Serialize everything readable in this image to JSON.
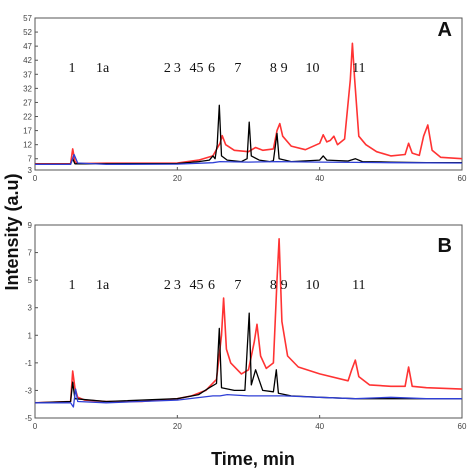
{
  "chart_data": [
    {
      "type": "line",
      "panel_label": "A",
      "xlim": [
        0,
        60
      ],
      "ylim": [
        3,
        57
      ],
      "x_ticks": [
        0,
        20,
        40,
        60
      ],
      "y_ticks": [
        3,
        7,
        12,
        17,
        22,
        27,
        32,
        37,
        42,
        47,
        52,
        57
      ],
      "peak_labels": [
        "1",
        "1a",
        "2",
        "3",
        "45",
        "6",
        "7",
        "8",
        "9",
        "10",
        "11"
      ],
      "series": [
        {
          "color": "#ff3333",
          "points": [
            [
              0,
              5.2
            ],
            [
              5,
              5.2
            ],
            [
              5.3,
              10.5
            ],
            [
              5.6,
              6
            ],
            [
              6,
              5.3
            ],
            [
              10,
              5.4
            ],
            [
              20,
              5.5
            ],
            [
              23,
              6.5
            ],
            [
              25,
              8
            ],
            [
              26,
              12.5
            ],
            [
              26.3,
              15.2
            ],
            [
              26.8,
              12
            ],
            [
              28,
              10
            ],
            [
              30,
              9.5
            ],
            [
              31,
              11
            ],
            [
              32,
              10
            ],
            [
              33.5,
              10.5
            ],
            [
              34,
              17
            ],
            [
              34.4,
              19.5
            ],
            [
              34.8,
              15
            ],
            [
              36,
              11.5
            ],
            [
              38,
              10.2
            ],
            [
              40,
              12.5
            ],
            [
              40.5,
              15.5
            ],
            [
              41,
              13
            ],
            [
              41.5,
              13.5
            ],
            [
              42,
              15
            ],
            [
              42.5,
              12
            ],
            [
              43.5,
              14
            ],
            [
              44.3,
              35
            ],
            [
              44.6,
              48
            ],
            [
              44.9,
              36
            ],
            [
              45.5,
              15
            ],
            [
              46.5,
              12
            ],
            [
              48,
              9.5
            ],
            [
              50,
              8
            ],
            [
              52,
              8.5
            ],
            [
              52.5,
              12.5
            ],
            [
              53,
              9
            ],
            [
              54,
              8.2
            ],
            [
              54.6,
              15
            ],
            [
              55.2,
              19
            ],
            [
              55.8,
              10
            ],
            [
              57,
              7.5
            ],
            [
              60,
              7
            ]
          ]
        },
        {
          "color": "#000000",
          "points": [
            [
              0,
              5.1
            ],
            [
              5,
              5.1
            ],
            [
              5.3,
              7
            ],
            [
              5.6,
              5.2
            ],
            [
              10,
              5.2
            ],
            [
              20,
              5.3
            ],
            [
              23,
              6
            ],
            [
              24.5,
              6.5
            ],
            [
              25,
              8
            ],
            [
              25.3,
              7
            ],
            [
              25.6,
              12
            ],
            [
              25.9,
              26
            ],
            [
              26.2,
              8
            ],
            [
              27,
              6.5
            ],
            [
              29,
              6
            ],
            [
              29.8,
              7
            ],
            [
              30.1,
              20
            ],
            [
              30.4,
              8
            ],
            [
              31.5,
              6.5
            ],
            [
              33,
              6
            ],
            [
              33.5,
              6.3
            ],
            [
              34,
              16
            ],
            [
              34.3,
              7
            ],
            [
              36,
              6
            ],
            [
              40,
              6.5
            ],
            [
              40.5,
              8
            ],
            [
              41,
              6.5
            ],
            [
              44,
              6.2
            ],
            [
              45,
              7
            ],
            [
              46,
              6
            ],
            [
              50,
              5.8
            ],
            [
              55,
              5.6
            ],
            [
              60,
              5.6
            ]
          ]
        },
        {
          "color": "#2f3fd6",
          "points": [
            [
              0,
              5
            ],
            [
              5,
              5
            ],
            [
              5.5,
              8.5
            ],
            [
              6,
              5.5
            ],
            [
              10,
              5
            ],
            [
              20,
              5.1
            ],
            [
              25,
              5.6
            ],
            [
              26,
              6
            ],
            [
              30,
              5.8
            ],
            [
              34,
              6
            ],
            [
              40,
              5.8
            ],
            [
              45,
              5.7
            ],
            [
              50,
              5.6
            ],
            [
              60,
              5.5
            ]
          ]
        }
      ]
    },
    {
      "type": "line",
      "panel_label": "B",
      "xlim": [
        0,
        60
      ],
      "ylim": [
        -5,
        9
      ],
      "x_ticks": [
        0,
        20,
        40,
        60
      ],
      "y_ticks": [
        -5,
        -3,
        -1,
        1,
        3,
        5,
        7,
        9
      ],
      "peak_labels": [
        "1",
        "1a",
        "2",
        "3",
        "45",
        "6",
        "7",
        "8",
        "9",
        "10",
        "11"
      ],
      "series": [
        {
          "color": "#ff3333",
          "points": [
            [
              0,
              -3.9
            ],
            [
              5,
              -3.8
            ],
            [
              5.3,
              -1.6
            ],
            [
              5.6,
              -2.8
            ],
            [
              6,
              -3.5
            ],
            [
              7,
              -3.7
            ],
            [
              10,
              -3.8
            ],
            [
              15,
              -3.8
            ],
            [
              20,
              -3.6
            ],
            [
              22,
              -3.4
            ],
            [
              24,
              -3
            ],
            [
              25.5,
              -2.2
            ],
            [
              26.2,
              1
            ],
            [
              26.5,
              3.7
            ],
            [
              26.9,
              0
            ],
            [
              27.5,
              -1
            ],
            [
              29,
              -1.8
            ],
            [
              30,
              -1.5
            ],
            [
              30.8,
              0.5
            ],
            [
              31.2,
              1.8
            ],
            [
              31.7,
              -0.5
            ],
            [
              32.5,
              -1.4
            ],
            [
              33.5,
              -1
            ],
            [
              34,
              5
            ],
            [
              34.3,
              8
            ],
            [
              34.7,
              2
            ],
            [
              35.5,
              -0.5
            ],
            [
              37,
              -1.3
            ],
            [
              40,
              -1.8
            ],
            [
              44,
              -2.3
            ],
            [
              44.5,
              -1.5
            ],
            [
              45,
              -0.8
            ],
            [
              45.5,
              -2
            ],
            [
              47,
              -2.6
            ],
            [
              50,
              -2.7
            ],
            [
              52,
              -2.7
            ],
            [
              52.5,
              -1.3
            ],
            [
              53,
              -2.7
            ],
            [
              55,
              -2.8
            ],
            [
              60,
              -2.9
            ]
          ]
        },
        {
          "color": "#000000",
          "points": [
            [
              0,
              -3.9
            ],
            [
              5,
              -3.8
            ],
            [
              5.3,
              -2.4
            ],
            [
              5.6,
              -3.6
            ],
            [
              10,
              -3.8
            ],
            [
              20,
              -3.6
            ],
            [
              23,
              -3.3
            ],
            [
              24.5,
              -2.8
            ],
            [
              25.5,
              -2.5
            ],
            [
              25.9,
              1.5
            ],
            [
              26.2,
              -2.8
            ],
            [
              28,
              -3
            ],
            [
              29.5,
              -3
            ],
            [
              30.1,
              2.6
            ],
            [
              30.4,
              -2.6
            ],
            [
              31,
              -1.5
            ],
            [
              32,
              -3
            ],
            [
              33.5,
              -3.1
            ],
            [
              33.9,
              -1.5
            ],
            [
              34.2,
              -3.2
            ],
            [
              36,
              -3.4
            ],
            [
              40,
              -3.5
            ],
            [
              45,
              -3.6
            ],
            [
              50,
              -3.6
            ],
            [
              55,
              -3.6
            ],
            [
              60,
              -3.6
            ]
          ]
        },
        {
          "color": "#2f3fd6",
          "points": [
            [
              0,
              -3.9
            ],
            [
              5,
              -3.9
            ],
            [
              5.4,
              -4.2
            ],
            [
              5.7,
              -2.9
            ],
            [
              6,
              -3.8
            ],
            [
              10,
              -3.9
            ],
            [
              20,
              -3.7
            ],
            [
              25,
              -3.4
            ],
            [
              26,
              -3.4
            ],
            [
              27,
              -3.3
            ],
            [
              30,
              -3.4
            ],
            [
              35,
              -3.4
            ],
            [
              40,
              -3.5
            ],
            [
              45,
              -3.6
            ],
            [
              50,
              -3.5
            ],
            [
              55,
              -3.6
            ],
            [
              60,
              -3.6
            ]
          ]
        }
      ]
    }
  ],
  "shared": {
    "ylabel": "Intensity (a.u)",
    "xlabel": "Time, min"
  }
}
